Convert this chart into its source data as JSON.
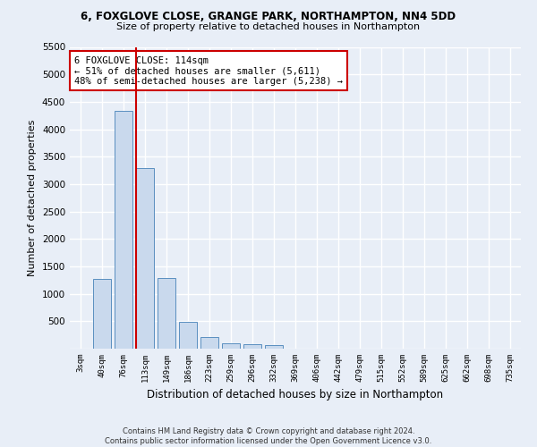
{
  "title_line1": "6, FOXGLOVE CLOSE, GRANGE PARK, NORTHAMPTON, NN4 5DD",
  "title_line2": "Size of property relative to detached houses in Northampton",
  "xlabel": "Distribution of detached houses by size in Northampton",
  "ylabel": "Number of detached properties",
  "bar_color": "#c9d9ed",
  "bar_edge_color": "#5a8fc0",
  "categories": [
    "3sqm",
    "40sqm",
    "76sqm",
    "113sqm",
    "149sqm",
    "186sqm",
    "223sqm",
    "259sqm",
    "296sqm",
    "332sqm",
    "369sqm",
    "406sqm",
    "442sqm",
    "479sqm",
    "515sqm",
    "552sqm",
    "589sqm",
    "625sqm",
    "662sqm",
    "698sqm",
    "735sqm"
  ],
  "values": [
    0,
    1270,
    4330,
    3300,
    1280,
    490,
    220,
    100,
    80,
    60,
    0,
    0,
    0,
    0,
    0,
    0,
    0,
    0,
    0,
    0,
    0
  ],
  "ylim": [
    0,
    5500
  ],
  "yticks": [
    0,
    500,
    1000,
    1500,
    2000,
    2500,
    3000,
    3500,
    4000,
    4500,
    5000,
    5500
  ],
  "property_line_idx": 3,
  "annotation_text": "6 FOXGLOVE CLOSE: 114sqm\n← 51% of detached houses are smaller (5,611)\n48% of semi-detached houses are larger (5,238) →",
  "annotation_box_color": "#ffffff",
  "annotation_box_edge": "#cc0000",
  "vline_color": "#cc0000",
  "background_color": "#e8eef7",
  "grid_color": "#ffffff",
  "footer_line1": "Contains HM Land Registry data © Crown copyright and database right 2024.",
  "footer_line2": "Contains public sector information licensed under the Open Government Licence v3.0."
}
